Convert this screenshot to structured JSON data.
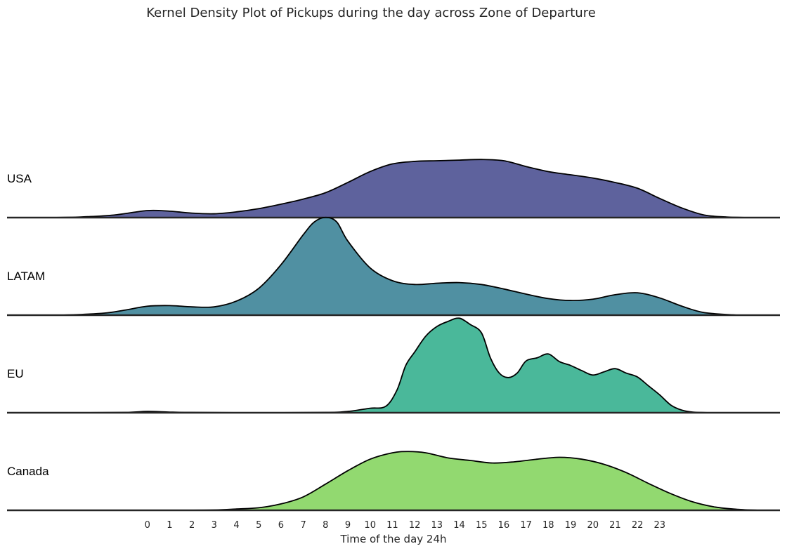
{
  "chart_data": {
    "type": "area",
    "title": "Kernel Density Plot of Pickups during the day across Zone of Departure",
    "xlabel": "Time of the day 24h",
    "ylabel": "",
    "x_ticks": [
      "0",
      "1",
      "2",
      "3",
      "4",
      "5",
      "6",
      "7",
      "8",
      "9",
      "10",
      "11",
      "12",
      "13",
      "14",
      "15",
      "16",
      "17",
      "18",
      "19",
      "20",
      "21",
      "22",
      "23"
    ],
    "xlim": [
      -6.3,
      28.4
    ],
    "grid": false,
    "series": [
      {
        "name": "USA",
        "color": "#3b3f87",
        "points": [
          [
            -4.6,
            0.0
          ],
          [
            -3,
            0.01
          ],
          [
            -1.5,
            0.04
          ],
          [
            0,
            0.11
          ],
          [
            1,
            0.1
          ],
          [
            2,
            0.07
          ],
          [
            3,
            0.06
          ],
          [
            4,
            0.09
          ],
          [
            5,
            0.14
          ],
          [
            6,
            0.21
          ],
          [
            7,
            0.29
          ],
          [
            8,
            0.39
          ],
          [
            9,
            0.55
          ],
          [
            10,
            0.72
          ],
          [
            11,
            0.84
          ],
          [
            12,
            0.88
          ],
          [
            13,
            0.89
          ],
          [
            14,
            0.9
          ],
          [
            15,
            0.91
          ],
          [
            16,
            0.89
          ],
          [
            17,
            0.8
          ],
          [
            18,
            0.72
          ],
          [
            19,
            0.67
          ],
          [
            20,
            0.62
          ],
          [
            21,
            0.55
          ],
          [
            22,
            0.46
          ],
          [
            23,
            0.3
          ],
          [
            24,
            0.15
          ],
          [
            25,
            0.04
          ],
          [
            26,
            0.01
          ],
          [
            27.2,
            0.0
          ]
        ]
      },
      {
        "name": "LATAM",
        "color": "#2a788e",
        "points": [
          [
            -3.8,
            0.0
          ],
          [
            -2,
            0.03
          ],
          [
            -1,
            0.08
          ],
          [
            0,
            0.14
          ],
          [
            1,
            0.15
          ],
          [
            2,
            0.13
          ],
          [
            3,
            0.13
          ],
          [
            4,
            0.22
          ],
          [
            5,
            0.42
          ],
          [
            6,
            0.79
          ],
          [
            7,
            1.26
          ],
          [
            7.5,
            1.46
          ],
          [
            8,
            1.53
          ],
          [
            8.5,
            1.46
          ],
          [
            9,
            1.16
          ],
          [
            10,
            0.74
          ],
          [
            11,
            0.54
          ],
          [
            12,
            0.48
          ],
          [
            13,
            0.5
          ],
          [
            14,
            0.51
          ],
          [
            15,
            0.48
          ],
          [
            16,
            0.41
          ],
          [
            17,
            0.33
          ],
          [
            18,
            0.26
          ],
          [
            19,
            0.23
          ],
          [
            20,
            0.25
          ],
          [
            21,
            0.32
          ],
          [
            22,
            0.35
          ],
          [
            23,
            0.27
          ],
          [
            24,
            0.14
          ],
          [
            25,
            0.04
          ],
          [
            26.5,
            0.0
          ]
        ]
      },
      {
        "name": "EU",
        "color": "#22a884",
        "points": [
          [
            -6,
            0.0
          ],
          [
            -3,
            0.0
          ],
          [
            -1,
            0.005
          ],
          [
            0,
            0.02
          ],
          [
            1,
            0.01
          ],
          [
            2,
            0.005
          ],
          [
            5,
            0.0
          ],
          [
            8,
            0.005
          ],
          [
            9,
            0.02
          ],
          [
            10,
            0.07
          ],
          [
            10.7,
            0.1
          ],
          [
            11.2,
            0.35
          ],
          [
            11.6,
            0.74
          ],
          [
            12,
            0.95
          ],
          [
            12.5,
            1.2
          ],
          [
            13,
            1.35
          ],
          [
            13.5,
            1.43
          ],
          [
            14,
            1.48
          ],
          [
            14.5,
            1.38
          ],
          [
            15,
            1.25
          ],
          [
            15.4,
            0.86
          ],
          [
            15.8,
            0.62
          ],
          [
            16.2,
            0.55
          ],
          [
            16.6,
            0.62
          ],
          [
            17,
            0.81
          ],
          [
            17.5,
            0.86
          ],
          [
            18,
            0.92
          ],
          [
            18.5,
            0.8
          ],
          [
            19,
            0.74
          ],
          [
            19.5,
            0.66
          ],
          [
            20,
            0.59
          ],
          [
            20.5,
            0.64
          ],
          [
            21,
            0.69
          ],
          [
            21.5,
            0.62
          ],
          [
            22,
            0.56
          ],
          [
            22.5,
            0.42
          ],
          [
            23,
            0.28
          ],
          [
            23.5,
            0.12
          ],
          [
            24,
            0.04
          ],
          [
            24.5,
            0.01
          ],
          [
            25.5,
            0.0
          ]
        ]
      },
      {
        "name": "Canada",
        "color": "#7ad151",
        "points": [
          [
            1.5,
            0.0
          ],
          [
            3,
            0.005
          ],
          [
            4,
            0.02
          ],
          [
            5,
            0.04
          ],
          [
            6,
            0.1
          ],
          [
            7,
            0.21
          ],
          [
            8,
            0.41
          ],
          [
            9,
            0.62
          ],
          [
            10,
            0.8
          ],
          [
            11,
            0.9
          ],
          [
            11.7,
            0.92
          ],
          [
            12.5,
            0.9
          ],
          [
            13.5,
            0.82
          ],
          [
            14.5,
            0.78
          ],
          [
            15.5,
            0.74
          ],
          [
            16.5,
            0.76
          ],
          [
            17.5,
            0.8
          ],
          [
            18.5,
            0.83
          ],
          [
            19.5,
            0.8
          ],
          [
            20.5,
            0.72
          ],
          [
            21.5,
            0.59
          ],
          [
            22.5,
            0.42
          ],
          [
            23.5,
            0.26
          ],
          [
            24.5,
            0.13
          ],
          [
            25.5,
            0.05
          ],
          [
            26.5,
            0.015
          ],
          [
            27.5,
            0.0
          ]
        ]
      }
    ]
  }
}
